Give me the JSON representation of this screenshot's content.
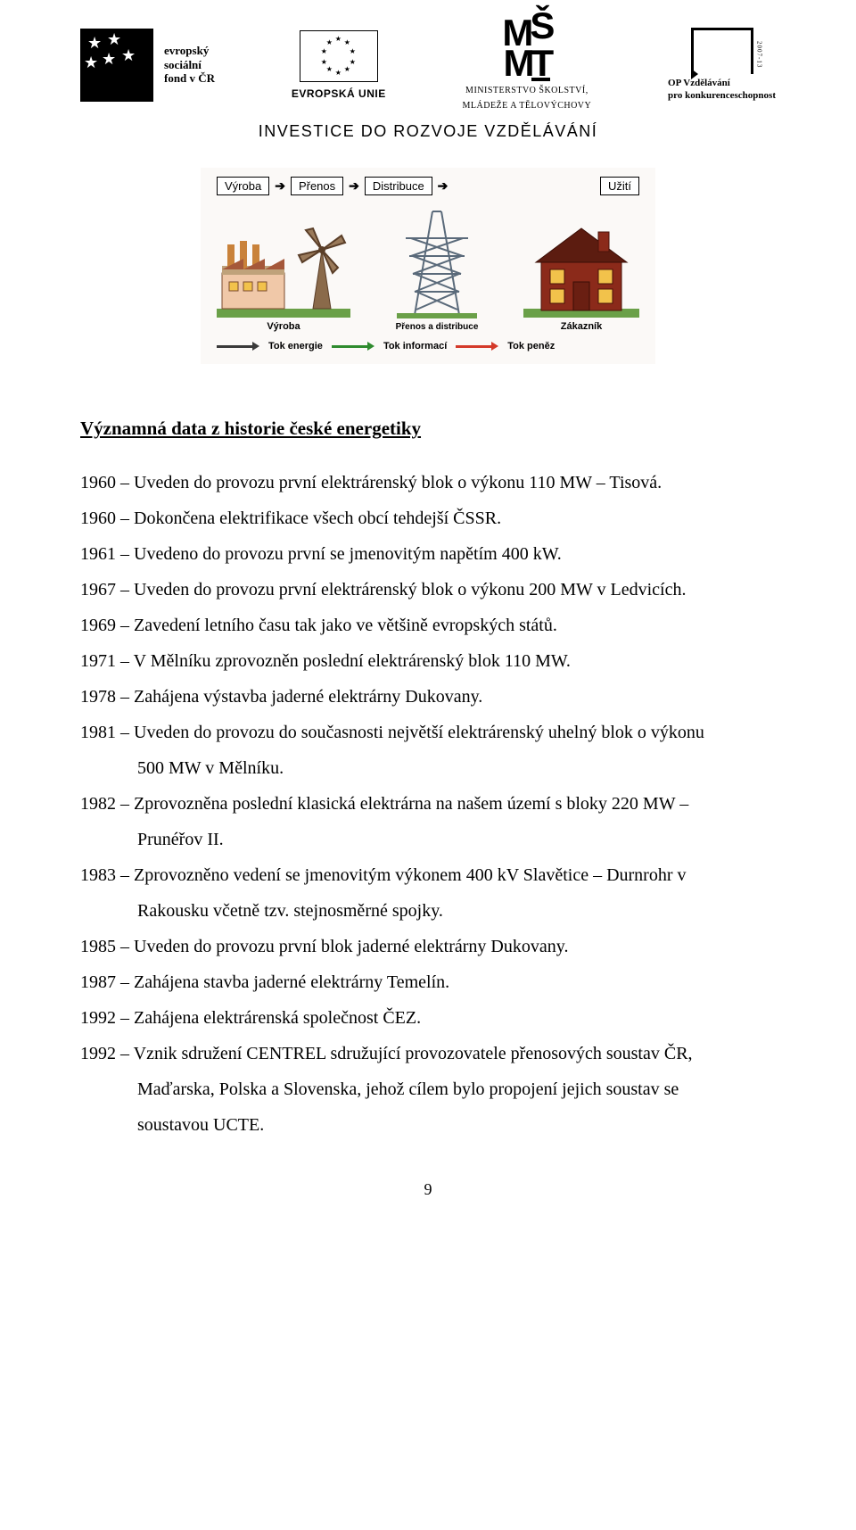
{
  "header": {
    "esf_line1": "evropský",
    "esf_line2": "sociální",
    "esf_line3": "fond v ČR",
    "eu_label": "EVROPSKÁ UNIE",
    "msmt_line1": "MINISTERSTVO ŠKOLSTVÍ,",
    "msmt_line2": "MLÁDEŽE A TĚLOVÝCHOVY",
    "opvk_years": "2007-13",
    "opvk_line1": "OP Vzdělávání",
    "opvk_line2": "pro konkurenceschopnost",
    "investice": "INVESTICE DO ROZVOJE VZDĚLÁVÁNÍ"
  },
  "diagram": {
    "chain": [
      "Výroba",
      "Přenos",
      "Distribuce",
      "Užití"
    ],
    "arrow": "➔",
    "captions": {
      "factory": "Výroba",
      "tower": "Přenos a distribuce",
      "house": "Zákazník"
    },
    "legend": [
      {
        "label": "Tok energie",
        "color": "#3a3a3a"
      },
      {
        "label": "Tok informací",
        "color": "#2e8b2e"
      },
      {
        "label": "Tok peněz",
        "color": "#d43a2a"
      }
    ],
    "colors": {
      "bg": "#fbf9f7",
      "factory_wall": "#f0c8a8",
      "factory_roof": "#a5583a",
      "windmill": "#6b4a34",
      "tower": "#5a6a7a",
      "house_wall": "#8b2a1a",
      "house_roof": "#5c1c10",
      "house_window": "#f2c24b",
      "grass": "#6aa048"
    }
  },
  "title": "Významná data z historie české energetiky",
  "items": [
    {
      "lines": [
        "1960 – Uveden do provozu první elektrárenský blok o výkonu 110 MW – Tisová."
      ]
    },
    {
      "lines": [
        "1960 – Dokončena elektrifikace všech obcí tehdejší ČSSR."
      ]
    },
    {
      "lines": [
        "1961 – Uvedeno do provozu první se jmenovitým napětím 400 kW."
      ]
    },
    {
      "lines": [
        "1967 – Uveden do provozu první elektrárenský blok o výkonu 200 MW v Ledvicích."
      ]
    },
    {
      "lines": [
        "1969 – Zavedení letního času tak jako ve většině evropských států."
      ]
    },
    {
      "lines": [
        "1971 – V Mělníku zprovozněn poslední elektrárenský blok 110 MW."
      ]
    },
    {
      "lines": [
        "1978 – Zahájena výstavba jaderné elektrárny Dukovany."
      ]
    },
    {
      "lines": [
        "1981 – Uveden do provozu do současnosti největší elektrárenský uhelný blok o výkonu",
        "500 MW v Mělníku."
      ]
    },
    {
      "lines": [
        "1982 – Zprovozněna poslední klasická elektrárna na našem území s bloky 220 MW –",
        "Prunéřov II."
      ]
    },
    {
      "lines": [
        "1983 – Zprovozněno vedení se jmenovitým výkonem 400 kV Slavětice – Durnrohr v",
        "Rakousku včetně tzv. stejnosměrné spojky."
      ]
    },
    {
      "lines": [
        "1985 – Uveden do provozu první blok jaderné elektrárny Dukovany."
      ]
    },
    {
      "lines": [
        "1987 – Zahájena stavba jaderné elektrárny Temelín."
      ]
    },
    {
      "lines": [
        "1992 – Zahájena elektrárenská společnost ČEZ."
      ]
    },
    {
      "lines": [
        "1992 – Vznik sdružení CENTREL sdružující provozovatele přenosových soustav ČR,",
        "Maďarska, Polska a Slovenska, jehož cílem bylo propojení jejich soustav se",
        "soustavou UCTE."
      ]
    }
  ],
  "page_number": "9"
}
